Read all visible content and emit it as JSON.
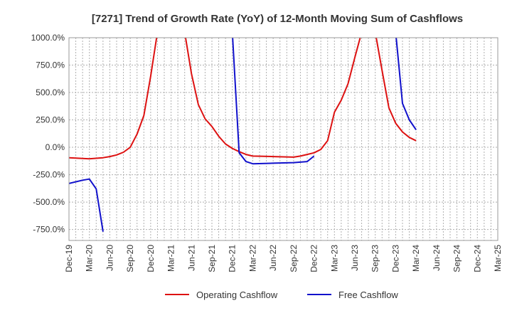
{
  "chart_data": {
    "type": "line",
    "title": "[7271]  Trend of Growth Rate (YoY) of 12-Month Moving Sum of Cashflows",
    "xlabel": "",
    "ylabel": "",
    "ylim": [
      -750,
      1000
    ],
    "y_ticks": [
      "1000.0%",
      "750.0%",
      "500.0%",
      "250.0%",
      "0.0%",
      "-250.0%",
      "-500.0%",
      "-750.0%"
    ],
    "y_tick_values": [
      1000,
      750,
      500,
      250,
      0,
      -250,
      -500,
      -750
    ],
    "x_ticks": [
      "Dec-19",
      "Mar-20",
      "Jun-20",
      "Sep-20",
      "Dec-20",
      "Mar-21",
      "Jun-21",
      "Sep-21",
      "Dec-21",
      "Mar-22",
      "Jun-22",
      "Sep-22",
      "Dec-22",
      "Mar-23",
      "Jun-23",
      "Sep-23",
      "Dec-23",
      "Mar-24",
      "Jun-24",
      "Sep-24",
      "Dec-24",
      "Mar-25"
    ],
    "grid": true,
    "legend_position": "bottom",
    "series": [
      {
        "name": "Operating Cashflow",
        "color": "#dd1111",
        "x": [
          "Dec-19",
          "Mar-20",
          "May-20",
          "Jun-20",
          "Jul-20",
          "Aug-20",
          "Sep-20",
          "Oct-20",
          "Nov-20",
          "Dec-20",
          "Jan-21",
          "Feb-21",
          "Mar-21",
          "Apr-21",
          "May-21",
          "Jun-21",
          "Jul-21",
          "Aug-21",
          "Sep-21",
          "Oct-21",
          "Nov-21",
          "Dec-21",
          "Jan-22",
          "Feb-22",
          "Mar-22",
          "Jun-22",
          "Sep-22",
          "Oct-22",
          "Nov-22",
          "Dec-22",
          "Jan-23",
          "Feb-23",
          "Mar-23",
          "Apr-23",
          "May-23",
          "Jun-23",
          "Jul-23",
          "Aug-23",
          "Sep-23",
          "Oct-23",
          "Nov-23",
          "Dec-23",
          "Jan-24",
          "Feb-24",
          "Mar-24"
        ],
        "y": [
          -95,
          -105,
          -95,
          -85,
          -70,
          -45,
          0,
          120,
          290,
          650,
          1050,
          null,
          null,
          null,
          1050,
          670,
          390,
          260,
          190,
          100,
          30,
          -10,
          -40,
          -65,
          -80,
          -85,
          -90,
          -80,
          -65,
          -50,
          -20,
          60,
          320,
          430,
          580,
          820,
          1050,
          null,
          1050,
          700,
          360,
          220,
          140,
          90,
          60
        ]
      },
      {
        "name": "Free Cashflow",
        "color": "#1111cc",
        "x": [
          "Dec-19",
          "Feb-20",
          "Mar-20",
          "Apr-20",
          "May-20",
          "Dec-21",
          "Jan-22",
          "Feb-22",
          "Mar-22",
          "Jun-22",
          "Sep-22",
          "Nov-22",
          "Dec-22",
          "Dec-23",
          "Jan-24",
          "Feb-24",
          "Mar-24"
        ],
        "y": [
          -330,
          -300,
          -290,
          -380,
          -770,
          1050,
          -50,
          -130,
          -150,
          -145,
          -140,
          -130,
          -80,
          1050,
          400,
          250,
          160
        ]
      }
    ]
  }
}
